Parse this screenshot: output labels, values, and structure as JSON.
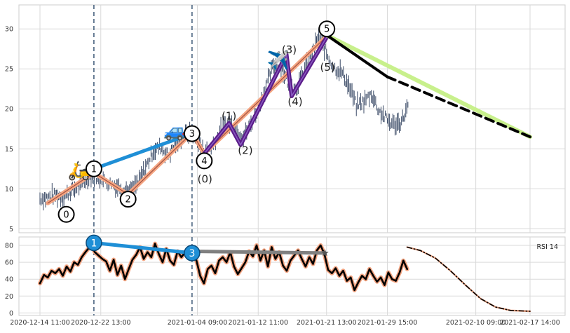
{
  "chart_data": [
    {
      "type": "line",
      "title": "",
      "xlabel": "",
      "ylabel": "",
      "ylim": [
        4.5,
        33
      ],
      "yticks": [
        5,
        10,
        15,
        20,
        25,
        30
      ],
      "grid": true,
      "price_series": {
        "style": "ohlc-bars",
        "color": "#3a4a66",
        "points": [
          [
            "2020-12-14 11:00",
            8.8
          ],
          [
            "2020-12-15 12:00",
            8.9
          ],
          [
            "2020-12-16 12:00",
            9.2
          ],
          [
            "2020-12-17 12:00",
            9.0
          ],
          [
            "2020-12-18 12:00",
            9.6
          ],
          [
            "2020-12-19 12:00",
            10.3
          ],
          [
            "2020-12-20 12:00",
            11.0
          ],
          [
            "2020-12-21 06:00",
            11.8
          ],
          [
            "2020-12-22 13:00",
            11.3
          ],
          [
            "2020-12-23 12:00",
            10.8
          ],
          [
            "2020-12-24 12:00",
            10.4
          ],
          [
            "2020-12-25 12:00",
            10.0
          ],
          [
            "2020-12-26 12:00",
            9.6
          ],
          [
            "2020-12-27 12:00",
            10.8
          ],
          [
            "2020-12-28 12:00",
            12.6
          ],
          [
            "2020-12-29 12:00",
            14.8
          ],
          [
            "2020-12-30 12:00",
            15.2
          ],
          [
            "2020-12-31 12:00",
            14.2
          ],
          [
            "2021-01-01 12:00",
            15.6
          ],
          [
            "2021-01-02 12:00",
            16.6
          ],
          [
            "2021-01-03 12:00",
            17.1
          ],
          [
            "2021-01-04 09:00",
            16.0
          ],
          [
            "2021-01-05 12:00",
            14.6
          ],
          [
            "2021-01-06 12:00",
            15.6
          ],
          [
            "2021-01-07 12:00",
            17.4
          ],
          [
            "2021-01-08 12:00",
            18.3
          ],
          [
            "2021-01-09 12:00",
            17.8
          ],
          [
            "2021-01-10 12:00",
            16.5
          ],
          [
            "2021-01-11 12:00",
            18.2
          ],
          [
            "2021-01-12 11:00",
            20.2
          ],
          [
            "2021-01-13 12:00",
            22.8
          ],
          [
            "2021-01-14 12:00",
            25.5
          ],
          [
            "2021-01-15 12:00",
            25.3
          ],
          [
            "2021-01-16 12:00",
            23.0
          ],
          [
            "2021-01-17 12:00",
            22.6
          ],
          [
            "2021-01-18 12:00",
            24.6
          ],
          [
            "2021-01-19 12:00",
            26.7
          ],
          [
            "2021-01-20 12:00",
            29.0
          ],
          [
            "2021-01-21 13:00",
            26.9
          ],
          [
            "2021-01-22 12:00",
            25.2
          ],
          [
            "2021-01-23 12:00",
            24.6
          ],
          [
            "2021-01-24 12:00",
            22.9
          ],
          [
            "2021-01-25 12:00",
            20.4
          ],
          [
            "2021-01-26 12:00",
            20.9
          ],
          [
            "2021-01-27 12:00",
            21.9
          ],
          [
            "2021-01-28 12:00",
            19.8
          ],
          [
            "2021-01-29 15:00",
            18.6
          ],
          [
            "2021-01-30 12:00",
            18.0
          ],
          [
            "2021-01-31 12:00",
            18.4
          ],
          [
            "2021-02-01 12:00",
            20.6
          ]
        ]
      },
      "wave_labels": [
        {
          "text": "0",
          "circled": true,
          "x": "2020-12-17 23:00",
          "y": 6.8
        },
        {
          "text": "1",
          "circled": true,
          "x": "2020-12-21 15:00",
          "y": 12.5
        },
        {
          "text": "2",
          "circled": true,
          "x": "2020-12-26 04:00",
          "y": 8.7
        },
        {
          "text": "3",
          "circled": true,
          "x": "2021-01-03 16:00",
          "y": 16.9
        },
        {
          "text": "4",
          "circled": true,
          "x": "2021-01-05 07:00",
          "y": 13.5
        },
        {
          "text": "5",
          "circled": true,
          "x": "2021-01-21 14:00",
          "y": 30.0
        },
        {
          "text": "(0)",
          "circled": false,
          "x": "2021-01-05 09:00",
          "y": 11.2
        },
        {
          "text": "(1)",
          "circled": false,
          "x": "2021-01-08 14:00",
          "y": 19.1
        },
        {
          "text": "(2)",
          "circled": false,
          "x": "2021-01-10 18:00",
          "y": 14.8
        },
        {
          "text": "(3)",
          "circled": false,
          "x": "2021-01-16 14:00",
          "y": 27.4
        },
        {
          "text": "(4)",
          "circled": false,
          "x": "2021-01-17 09:00",
          "y": 20.9
        },
        {
          "text": "(5)",
          "circled": false,
          "x": "2021-01-21 16:00",
          "y": 25.2
        }
      ],
      "trend_lines": [
        {
          "name": "wave-1-3",
          "color": "#1f8fd6",
          "width": 5,
          "points": [
            [
              "2020-12-21 15:00",
              12.5
            ],
            [
              "2021-01-03 16:00",
              16.9
            ]
          ]
        },
        {
          "name": "projection",
          "color": "#c8f08c",
          "width": 6,
          "points": [
            [
              "2021-01-21 14:00",
              29.2
            ],
            [
              "2021-02-17 14:00",
              16.5
            ]
          ]
        },
        {
          "name": "projection-solid",
          "color": "#000000",
          "width": 4,
          "points": [
            [
              "2021-01-21 14:00",
              29.2
            ],
            [
              "2021-01-29 15:00",
              24.0
            ]
          ]
        },
        {
          "name": "projection-dashed",
          "color": "#000000",
          "width": 4,
          "dashed": true,
          "points": [
            [
              "2021-01-29 15:00",
              24.0
            ],
            [
              "2021-02-17 14:00",
              16.5
            ]
          ]
        }
      ],
      "wave_paths": [
        {
          "name": "primary",
          "color": "#f4a582",
          "width": 6,
          "points": [
            [
              "2020-12-15 12:00",
              8.2
            ],
            [
              "2020-12-21 15:00",
              12.0
            ],
            [
              "2020-12-26 04:00",
              9.3
            ],
            [
              "2021-01-03 16:00",
              17.0
            ],
            [
              "2021-01-05 07:00",
              14.4
            ],
            [
              "2021-01-21 14:00",
              29.1
            ]
          ]
        },
        {
          "name": "primary-core",
          "color": "#a05040",
          "width": 1.2,
          "points": [
            [
              "2020-12-15 12:00",
              8.2
            ],
            [
              "2020-12-21 15:00",
              12.0
            ],
            [
              "2020-12-26 04:00",
              9.3
            ],
            [
              "2021-01-03 16:00",
              17.0
            ],
            [
              "2021-01-05 07:00",
              14.4
            ],
            [
              "2021-01-21 14:00",
              29.1
            ]
          ]
        },
        {
          "name": "subwave",
          "color": "#5b1d8a",
          "width": 6,
          "points": [
            [
              "2021-01-05 07:00",
              14.4
            ],
            [
              "2021-01-08 14:00",
              18.2
            ],
            [
              "2021-01-10 03:00",
              15.5
            ],
            [
              "2021-01-16 05:00",
              26.8
            ],
            [
              "2021-01-16 22:00",
              21.6
            ],
            [
              "2021-01-21 14:00",
              29.0
            ]
          ]
        }
      ],
      "icons": [
        {
          "name": "scooter-icon",
          "glyph": "🛵",
          "x": "2020-12-19 16:00",
          "y": 12.3
        },
        {
          "name": "car-icon",
          "glyph": "🚙",
          "x": "2021-01-01 09:00",
          "y": 17.3
        },
        {
          "name": "airplane-icon",
          "glyph": "✈️",
          "x": "2021-01-15 03:00",
          "y": 26.1
        }
      ]
    },
    {
      "type": "line",
      "title": "",
      "xlabel": "",
      "ylabel": "",
      "legend": "RSI 14",
      "legend_position": "top-right",
      "ylim": [
        -3,
        90
      ],
      "yticks": [
        0,
        20,
        40,
        60,
        80
      ],
      "grid": true,
      "rsi_series": {
        "name": "RSI 14",
        "points": [
          [
            "2020-12-14 11:00",
            35
          ],
          [
            "2020-12-15 00:00",
            45
          ],
          [
            "2020-12-15 12:00",
            42
          ],
          [
            "2020-12-16 00:00",
            50
          ],
          [
            "2020-12-16 12:00",
            47
          ],
          [
            "2020-12-17 00:00",
            52
          ],
          [
            "2020-12-17 12:00",
            44
          ],
          [
            "2020-12-18 00:00",
            55
          ],
          [
            "2020-12-18 12:00",
            49
          ],
          [
            "2020-12-19 00:00",
            60
          ],
          [
            "2020-12-19 12:00",
            57
          ],
          [
            "2020-12-20 00:00",
            66
          ],
          [
            "2020-12-20 12:00",
            72
          ],
          [
            "2020-12-21 06:00",
            80
          ],
          [
            "2020-12-21 18:00",
            72
          ],
          [
            "2020-12-22 06:00",
            68
          ],
          [
            "2020-12-22 18:00",
            64
          ],
          [
            "2020-12-23 06:00",
            61
          ],
          [
            "2020-12-23 18:00",
            50
          ],
          [
            "2020-12-24 06:00",
            63
          ],
          [
            "2020-12-24 18:00",
            45
          ],
          [
            "2020-12-25 06:00",
            56
          ],
          [
            "2020-12-25 18:00",
            40
          ],
          [
            "2020-12-26 06:00",
            52
          ],
          [
            "2020-12-26 18:00",
            63
          ],
          [
            "2020-12-27 06:00",
            69
          ],
          [
            "2020-12-27 18:00",
            78
          ],
          [
            "2020-12-28 06:00",
            64
          ],
          [
            "2020-12-28 18:00",
            72
          ],
          [
            "2020-12-29 06:00",
            66
          ],
          [
            "2020-12-29 18:00",
            82
          ],
          [
            "2020-12-30 06:00",
            70
          ],
          [
            "2020-12-30 18:00",
            60
          ],
          [
            "2020-12-31 06:00",
            76
          ],
          [
            "2020-12-31 18:00",
            62
          ],
          [
            "2021-01-01 06:00",
            57
          ],
          [
            "2021-01-01 18:00",
            73
          ],
          [
            "2021-01-02 06:00",
            66
          ],
          [
            "2021-01-02 18:00",
            72
          ],
          [
            "2021-01-03 06:00",
            70
          ],
          [
            "2021-01-03 18:00",
            68
          ],
          [
            "2021-01-04 06:00",
            62
          ],
          [
            "2021-01-04 18:00",
            44
          ],
          [
            "2021-01-05 06:00",
            35
          ],
          [
            "2021-01-05 18:00",
            52
          ],
          [
            "2021-01-06 06:00",
            56
          ],
          [
            "2021-01-06 18:00",
            47
          ],
          [
            "2021-01-07 06:00",
            62
          ],
          [
            "2021-01-07 18:00",
            66
          ],
          [
            "2021-01-08 06:00",
            60
          ],
          [
            "2021-01-08 18:00",
            72
          ],
          [
            "2021-01-09 06:00",
            55
          ],
          [
            "2021-01-09 18:00",
            46
          ],
          [
            "2021-01-10 06:00",
            53
          ],
          [
            "2021-01-10 18:00",
            60
          ],
          [
            "2021-01-11 06:00",
            73
          ],
          [
            "2021-01-11 18:00",
            67
          ],
          [
            "2021-01-12 06:00",
            80
          ],
          [
            "2021-01-12 18:00",
            62
          ],
          [
            "2021-01-13 06:00",
            74
          ],
          [
            "2021-01-13 18:00",
            55
          ],
          [
            "2021-01-14 06:00",
            78
          ],
          [
            "2021-01-14 18:00",
            64
          ],
          [
            "2021-01-15 06:00",
            72
          ],
          [
            "2021-01-15 18:00",
            56
          ],
          [
            "2021-01-16 06:00",
            50
          ],
          [
            "2021-01-16 18:00",
            62
          ],
          [
            "2021-01-17 06:00",
            68
          ],
          [
            "2021-01-17 18:00",
            74
          ],
          [
            "2021-01-18 06:00",
            64
          ],
          [
            "2021-01-18 18:00",
            55
          ],
          [
            "2021-01-19 06:00",
            66
          ],
          [
            "2021-01-19 18:00",
            58
          ],
          [
            "2021-01-20 06:00",
            74
          ],
          [
            "2021-01-20 18:00",
            80
          ],
          [
            "2021-01-21 06:00",
            70
          ],
          [
            "2021-01-21 18:00",
            51
          ],
          [
            "2021-01-22 06:00",
            47
          ],
          [
            "2021-01-22 18:00",
            53
          ],
          [
            "2021-01-23 06:00",
            44
          ],
          [
            "2021-01-23 18:00",
            50
          ],
          [
            "2021-01-24 06:00",
            38
          ],
          [
            "2021-01-24 18:00",
            42
          ],
          [
            "2021-01-25 06:00",
            27
          ],
          [
            "2021-01-25 18:00",
            36
          ],
          [
            "2021-01-26 06:00",
            44
          ],
          [
            "2021-01-26 18:00",
            40
          ],
          [
            "2021-01-27 06:00",
            52
          ],
          [
            "2021-01-27 18:00",
            44
          ],
          [
            "2021-01-28 06:00",
            37
          ],
          [
            "2021-01-28 18:00",
            42
          ],
          [
            "2021-01-29 06:00",
            33
          ],
          [
            "2021-01-29 18:00",
            48
          ],
          [
            "2021-01-30 06:00",
            40
          ],
          [
            "2021-01-30 18:00",
            38
          ],
          [
            "2021-01-31 06:00",
            48
          ],
          [
            "2021-01-31 18:00",
            62
          ],
          [
            "2021-02-01 06:00",
            52
          ]
        ]
      },
      "rsi_projection": {
        "style": "dash-dot",
        "color": "#000000",
        "points": [
          [
            "2021-02-01 06:00",
            78
          ],
          [
            "2021-02-03 00:00",
            74
          ],
          [
            "2021-02-05 00:00",
            65
          ],
          [
            "2021-02-07 00:00",
            50
          ],
          [
            "2021-02-09 00:00",
            33
          ],
          [
            "2021-02-11 00:00",
            17
          ],
          [
            "2021-02-13 00:00",
            7
          ],
          [
            "2021-02-15 00:00",
            3
          ],
          [
            "2021-02-17 14:00",
            2
          ]
        ]
      },
      "markers": [
        {
          "text": "1",
          "x": "2020-12-21 15:00",
          "y": 83,
          "color": "#1f8fd6"
        },
        {
          "text": "3",
          "x": "2021-01-03 16:00",
          "y": 71,
          "color": "#1f8fd6"
        }
      ],
      "trend_lines": [
        {
          "name": "rsi-trend-1-3",
          "color": "#1f8fd6",
          "width": 5,
          "points": [
            [
              "2020-12-21 15:00",
              83
            ],
            [
              "2021-01-03 16:00",
              71
            ]
          ]
        },
        {
          "name": "rsi-trend-grey",
          "color": "#808080",
          "width": 5,
          "points": [
            [
              "2021-01-03 16:00",
              73
            ],
            [
              "2021-01-21 08:00",
              71
            ]
          ]
        }
      ],
      "x_ticks": [
        "2020-12-14 11:00",
        "2020-12-22 13:00",
        "2021-01-04 09:00",
        "2021-01-12 11:00",
        "2021-01-21 13:00",
        "2021-01-29 15:00",
        "2021-02-10 09:00",
        "2021-02-17 14:00"
      ]
    }
  ],
  "vertical_markers": [
    "2020-12-21 15:00",
    "2021-01-03 16:00"
  ],
  "colors": {
    "grid": "#d9d9d9",
    "axis_border": "#cccccc",
    "price": "#3a4a66",
    "rsi_line": "#000000",
    "rsi_glow": "#f4a582",
    "vertical_marker": "#4a6480"
  }
}
